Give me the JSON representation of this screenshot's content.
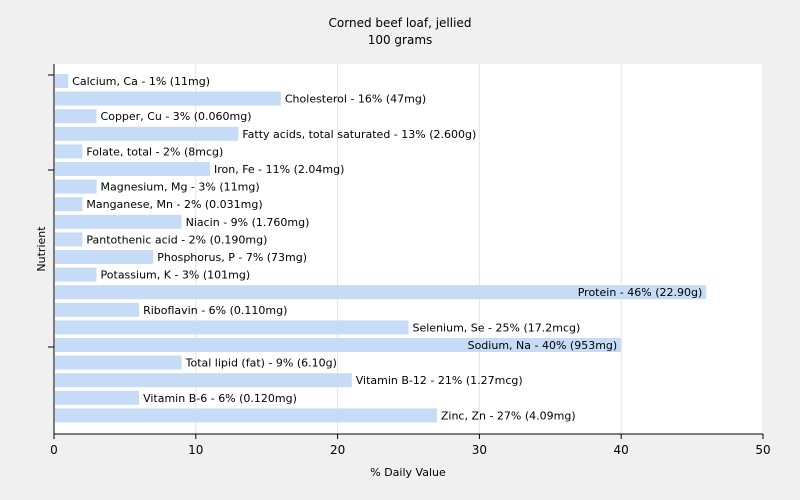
{
  "chart_data": {
    "type": "bar",
    "orientation": "horizontal",
    "title": "Corned beef loaf, jellied",
    "subtitle": "100 grams",
    "xlabel": "% Daily Value",
    "ylabel": "Nutrient",
    "xlim": [
      0,
      50
    ],
    "xticks": [
      0,
      10,
      20,
      30,
      40,
      50
    ],
    "grid": true,
    "bar_color": "#c6dcf6",
    "categories": [
      "Calcium, Ca - 1% (11mg)",
      "Cholesterol - 16% (47mg)",
      "Copper, Cu - 3% (0.060mg)",
      "Fatty acids, total saturated - 13% (2.600g)",
      "Folate, total - 2% (8mcg)",
      "Iron, Fe - 11% (2.04mg)",
      "Magnesium, Mg - 3% (11mg)",
      "Manganese, Mn - 2% (0.031mg)",
      "Niacin - 9% (1.760mg)",
      "Pantothenic acid - 2% (0.190mg)",
      "Phosphorus, P - 7% (73mg)",
      "Potassium, K - 3% (101mg)",
      "Protein - 46% (22.90g)",
      "Riboflavin - 6% (0.110mg)",
      "Selenium, Se - 25% (17.2mcg)",
      "Sodium, Na - 40% (953mg)",
      "Total lipid (fat) - 9% (6.10g)",
      "Vitamin B-12 - 21% (1.27mcg)",
      "Vitamin B-6 - 6% (0.120mg)",
      "Zinc, Zn - 27% (4.09mg)"
    ],
    "values": [
      1,
      16,
      3,
      13,
      2,
      11,
      3,
      2,
      9,
      2,
      7,
      3,
      46,
      6,
      25,
      40,
      9,
      21,
      6,
      27
    ]
  }
}
